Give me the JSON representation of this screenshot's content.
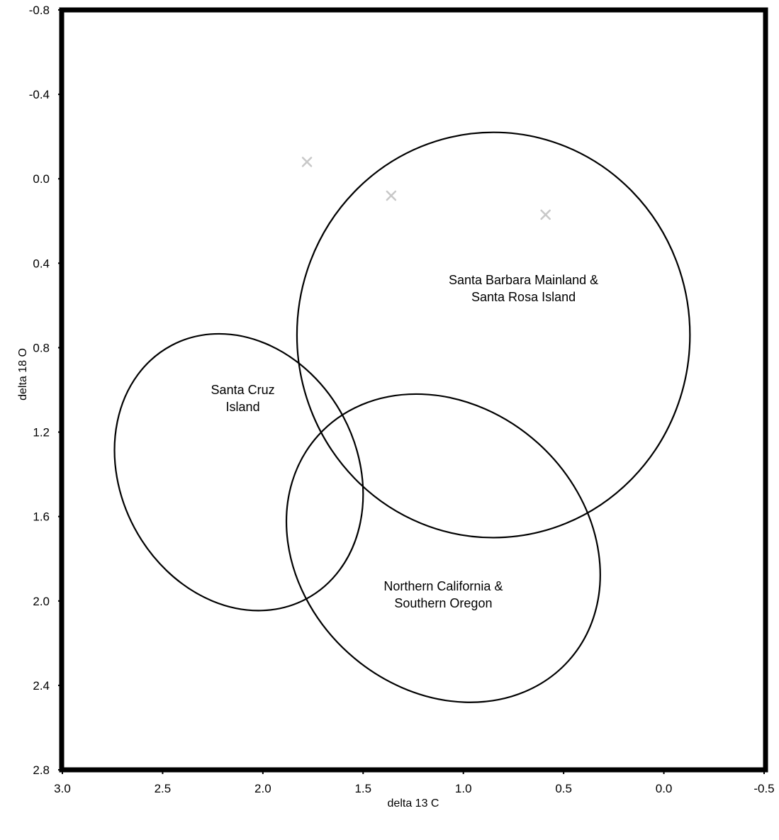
{
  "chart_data": {
    "type": "scatter",
    "title": "",
    "xlabel": "delta 13 C",
    "ylabel": "delta 18 O",
    "xlim": [
      3.0,
      -0.5
    ],
    "ylim": [
      -0.8,
      2.8
    ],
    "x_inverted": true,
    "y_inverted": true,
    "grid": false,
    "x_ticks": [
      "3.0",
      "2.5",
      "2.0",
      "1.5",
      "1.0",
      "0.5",
      "0.0",
      "-0.5"
    ],
    "y_ticks": [
      "-0.8",
      "-0.4",
      "0.0",
      "0.4",
      "0.8",
      "1.2",
      "1.6",
      "2.0",
      "2.4",
      "2.8"
    ],
    "points": [
      {
        "x": 1.78,
        "y": -0.08
      },
      {
        "x": 1.36,
        "y": 0.08
      },
      {
        "x": 0.59,
        "y": 0.17
      }
    ],
    "marker": "x",
    "marker_color": "#c8c8c8",
    "regions": [
      {
        "label_lines": [
          "Santa Barbara Mainland &",
          "Santa Rosa Island"
        ],
        "center": [
          0.85,
          0.74
        ],
        "x_radius": 0.98,
        "y_radius": 0.96,
        "angle": 0,
        "label_at": [
          0.7,
          0.5
        ]
      },
      {
        "label_lines": [
          "Santa Cruz",
          "Island"
        ],
        "center": [
          2.12,
          1.39
        ],
        "x_radius": 0.59,
        "y_radius": 0.68,
        "angle": -28,
        "label_at": [
          2.1,
          1.02
        ]
      },
      {
        "label_lines": [
          "Northern California &",
          "Southern Oregon"
        ],
        "center": [
          1.1,
          1.75
        ],
        "x_radius": 0.84,
        "y_radius": 0.67,
        "angle": 42,
        "label_at": [
          1.1,
          1.95
        ]
      }
    ]
  }
}
